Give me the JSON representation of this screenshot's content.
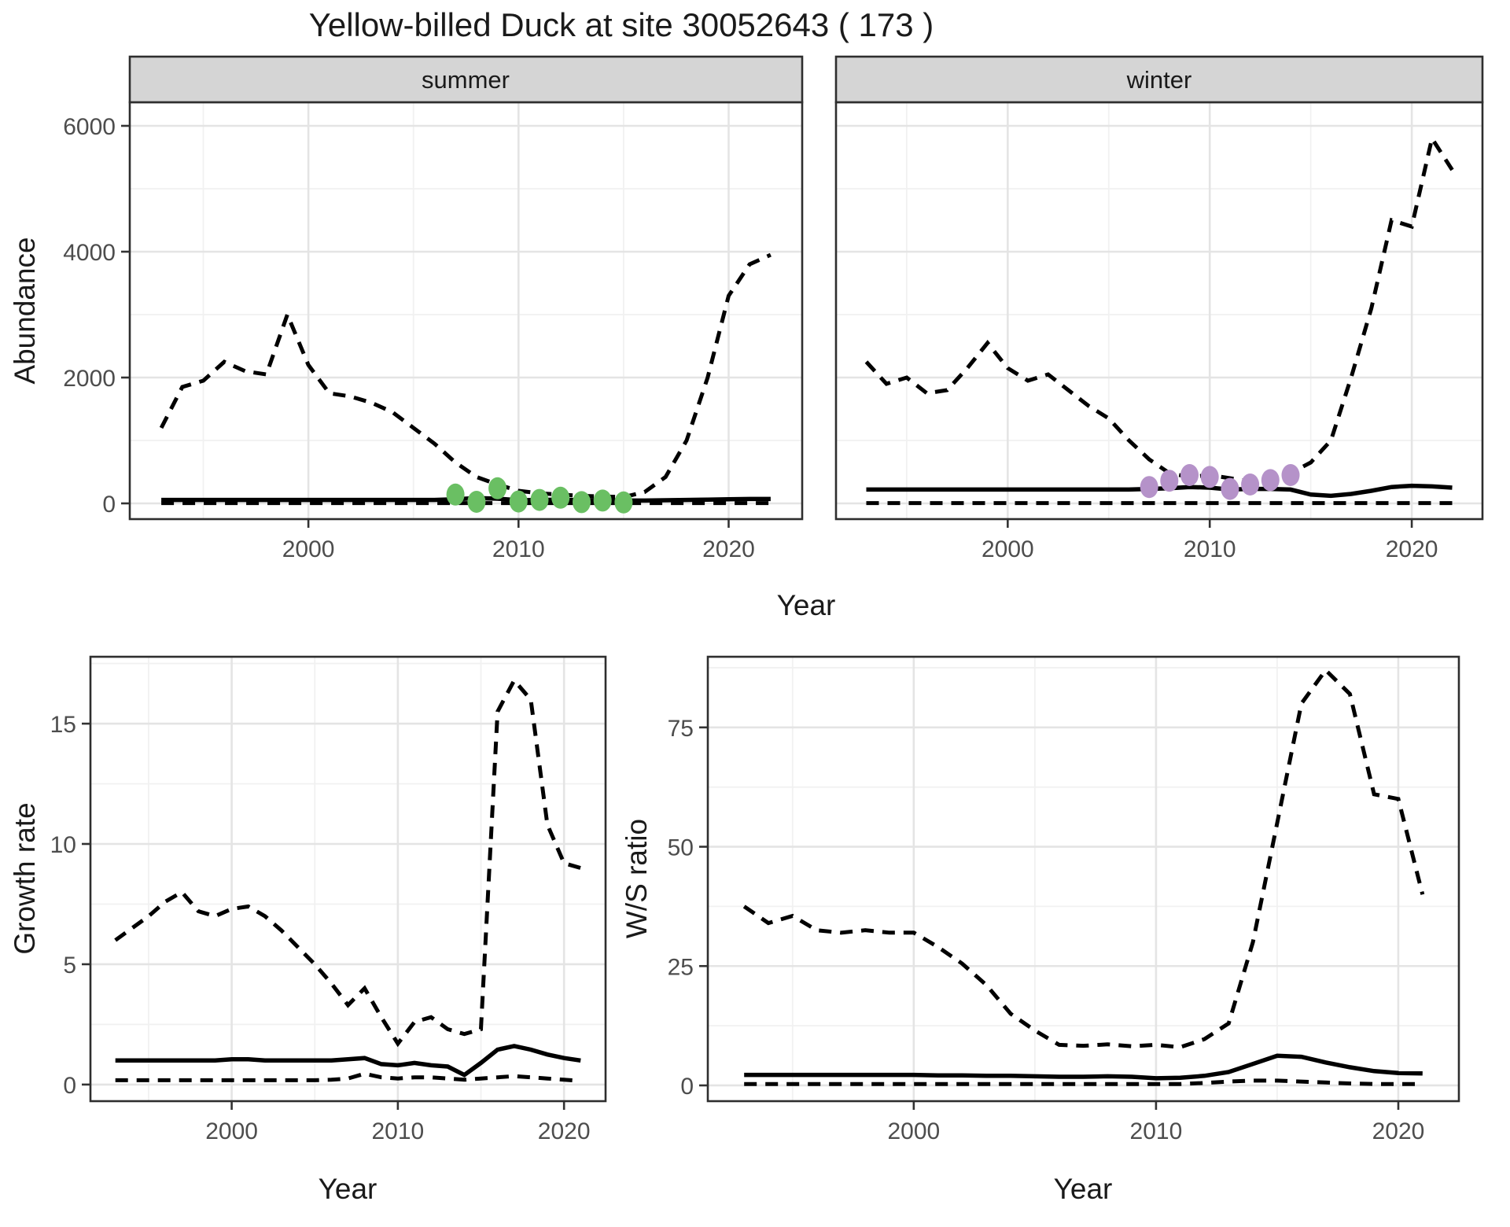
{
  "title": "Yellow-billed Duck at site 30052643 ( 173 )",
  "facets": {
    "summer": "summer",
    "winter": "winter"
  },
  "axis_labels": {
    "abundance": "Abundance",
    "year": "Year",
    "growth_rate": "Growth rate",
    "ws_ratio": "W/S ratio"
  },
  "colors": {
    "summer_points": "#6abf63",
    "winter_points": "#b592c9",
    "line": "#000000",
    "strip_fill": "#d5d5d5",
    "panel_border": "#2e2e2e",
    "grid_major": "#e4e4e4",
    "grid_minor": "#f1f1f1",
    "tick_mark": "#333333"
  },
  "chart_data": [
    {
      "id": "abundance-summer",
      "type": "line",
      "facet": "summer",
      "xlabel": "Year",
      "ylabel": "Abundance",
      "x": [
        1993,
        1994,
        1995,
        1996,
        1997,
        1998,
        1999,
        2000,
        2001,
        2002,
        2003,
        2004,
        2005,
        2006,
        2007,
        2008,
        2009,
        2010,
        2011,
        2012,
        2013,
        2014,
        2015,
        2016,
        2017,
        2018,
        2019,
        2020,
        2021,
        2022
      ],
      "series": [
        {
          "name": "upper_95ci",
          "style": "dashed",
          "values": [
            1200,
            1850,
            1950,
            2250,
            2100,
            2050,
            3000,
            2200,
            1750,
            1700,
            1600,
            1450,
            1200,
            950,
            650,
            420,
            300,
            200,
            160,
            140,
            120,
            110,
            100,
            180,
            420,
            1000,
            2000,
            3300,
            3800,
            3950
          ]
        },
        {
          "name": "fit",
          "style": "solid",
          "values": [
            55,
            55,
            55,
            55,
            55,
            55,
            55,
            55,
            55,
            55,
            55,
            55,
            55,
            55,
            65,
            85,
            75,
            50,
            55,
            60,
            50,
            50,
            45,
            45,
            50,
            55,
            60,
            65,
            70,
            70
          ]
        },
        {
          "name": "lower_95ci",
          "style": "dashed",
          "values": [
            5,
            5,
            5,
            5,
            5,
            5,
            5,
            5,
            5,
            5,
            5,
            5,
            5,
            5,
            5,
            5,
            5,
            5,
            5,
            5,
            5,
            5,
            5,
            5,
            5,
            5,
            5,
            5,
            5,
            5
          ]
        }
      ],
      "points": {
        "name": "observed_counts",
        "color_key": "summer_points",
        "x": [
          2007,
          2008,
          2009,
          2010,
          2011,
          2012,
          2013,
          2014,
          2015
        ],
        "y": [
          140,
          25,
          240,
          30,
          55,
          90,
          20,
          45,
          15
        ]
      },
      "xlim": [
        1991.5,
        2023.5
      ],
      "ylim": [
        0,
        6000
      ],
      "xticks": [
        2000,
        2010,
        2020
      ],
      "xticks_minor": [
        1995,
        2005,
        2015
      ],
      "yticks": [
        0,
        2000,
        4000,
        6000
      ],
      "yticks_minor": [
        1000,
        3000,
        5000
      ]
    },
    {
      "id": "abundance-winter",
      "type": "line",
      "facet": "winter",
      "xlabel": "Year",
      "ylabel": "Abundance",
      "x": [
        1993,
        1994,
        1995,
        1996,
        1997,
        1998,
        1999,
        2000,
        2001,
        2002,
        2003,
        2004,
        2005,
        2006,
        2007,
        2008,
        2009,
        2010,
        2011,
        2012,
        2013,
        2014,
        2015,
        2016,
        2017,
        2018,
        2019,
        2020,
        2021,
        2022
      ],
      "series": [
        {
          "name": "upper_95ci",
          "style": "dashed",
          "values": [
            2250,
            1900,
            2000,
            1750,
            1800,
            2150,
            2550,
            2150,
            1950,
            2050,
            1800,
            1550,
            1350,
            1000,
            700,
            480,
            420,
            450,
            400,
            350,
            400,
            480,
            650,
            1000,
            2000,
            3100,
            4500,
            4400,
            5800,
            5300
          ]
        },
        {
          "name": "fit",
          "style": "solid",
          "values": [
            220,
            220,
            220,
            220,
            220,
            220,
            220,
            220,
            220,
            220,
            220,
            220,
            220,
            220,
            230,
            240,
            260,
            250,
            220,
            230,
            230,
            220,
            140,
            120,
            150,
            200,
            260,
            280,
            270,
            250
          ]
        },
        {
          "name": "lower_95ci",
          "style": "dashed",
          "values": [
            5,
            5,
            5,
            5,
            5,
            5,
            5,
            5,
            5,
            5,
            5,
            5,
            5,
            5,
            5,
            5,
            5,
            5,
            5,
            5,
            5,
            5,
            5,
            5,
            5,
            5,
            5,
            5,
            5,
            5
          ]
        }
      ],
      "points": {
        "name": "observed_counts",
        "color_key": "winter_points",
        "x": [
          2007,
          2008,
          2009,
          2010,
          2011,
          2012,
          2013,
          2014
        ],
        "y": [
          260,
          360,
          450,
          420,
          230,
          300,
          370,
          450
        ]
      },
      "xlim": [
        1991.5,
        2023.5
      ],
      "ylim": [
        0,
        6000
      ],
      "xticks": [
        2000,
        2010,
        2020
      ],
      "xticks_minor": [
        1995,
        2005,
        2015
      ],
      "yticks": [
        0,
        2000,
        4000,
        6000
      ],
      "yticks_minor": [
        1000,
        3000,
        5000
      ]
    },
    {
      "id": "growth-rate",
      "type": "line",
      "facet": null,
      "xlabel": "Year",
      "ylabel": "Growth rate",
      "x": [
        1993,
        1994,
        1995,
        1996,
        1997,
        1998,
        1999,
        2000,
        2001,
        2002,
        2003,
        2004,
        2005,
        2006,
        2007,
        2008,
        2009,
        2010,
        2011,
        2012,
        2013,
        2014,
        2015,
        2016,
        2017,
        2018,
        2019,
        2020,
        2021
      ],
      "series": [
        {
          "name": "upper_95ci",
          "style": "dashed",
          "values": [
            6.0,
            6.5,
            7.0,
            7.6,
            8.0,
            7.2,
            7.0,
            7.3,
            7.4,
            7.0,
            6.4,
            5.7,
            5.0,
            4.2,
            3.3,
            4.0,
            2.8,
            1.7,
            2.6,
            2.8,
            2.3,
            2.1,
            2.3,
            15.5,
            16.8,
            16.0,
            10.8,
            9.2,
            9.0
          ]
        },
        {
          "name": "fit",
          "style": "solid",
          "values": [
            1.0,
            1.0,
            1.0,
            1.0,
            1.0,
            1.0,
            1.0,
            1.05,
            1.05,
            1.0,
            1.0,
            1.0,
            1.0,
            1.0,
            1.05,
            1.1,
            0.85,
            0.8,
            0.9,
            0.8,
            0.75,
            0.4,
            0.9,
            1.45,
            1.6,
            1.45,
            1.25,
            1.1,
            1.0
          ]
        },
        {
          "name": "lower_95ci",
          "style": "dashed",
          "values": [
            0.18,
            0.18,
            0.18,
            0.18,
            0.18,
            0.18,
            0.18,
            0.18,
            0.18,
            0.18,
            0.18,
            0.18,
            0.18,
            0.2,
            0.25,
            0.45,
            0.3,
            0.25,
            0.3,
            0.3,
            0.25,
            0.2,
            0.25,
            0.3,
            0.35,
            0.3,
            0.25,
            0.2,
            0.15
          ]
        }
      ],
      "points": null,
      "xlim": [
        1991.5,
        2022.5
      ],
      "ylim": [
        0,
        15
      ],
      "xticks": [
        2000,
        2010,
        2020
      ],
      "xticks_minor": [
        1995,
        2005,
        2015
      ],
      "yticks": [
        0,
        5,
        10,
        15
      ],
      "yticks_minor": [
        2.5,
        7.5,
        12.5,
        17.5
      ]
    },
    {
      "id": "ws-ratio",
      "type": "line",
      "facet": null,
      "xlabel": "Year",
      "ylabel": "W/S ratio",
      "x": [
        1993,
        1994,
        1995,
        1996,
        1997,
        1998,
        1999,
        2000,
        2001,
        2002,
        2003,
        2004,
        2005,
        2006,
        2007,
        2008,
        2009,
        2010,
        2011,
        2012,
        2013,
        2014,
        2015,
        2016,
        2017,
        2018,
        2019,
        2020,
        2021
      ],
      "series": [
        {
          "name": "upper_95ci",
          "style": "dashed",
          "values": [
            37.5,
            34,
            35.5,
            32.5,
            32,
            32.5,
            32,
            32,
            29,
            25.5,
            21,
            15,
            11.5,
            8.5,
            8.3,
            8.6,
            8.2,
            8.5,
            8.0,
            9.7,
            13,
            30,
            55,
            80,
            87,
            82,
            61,
            60,
            40
          ]
        },
        {
          "name": "fit",
          "style": "solid",
          "values": [
            2.2,
            2.2,
            2.2,
            2.2,
            2.2,
            2.2,
            2.2,
            2.2,
            2.1,
            2.1,
            2.0,
            2.0,
            1.9,
            1.8,
            1.8,
            1.9,
            1.8,
            1.5,
            1.6,
            2.0,
            2.8,
            4.5,
            6.2,
            6.0,
            4.8,
            3.8,
            3.0,
            2.6,
            2.5
          ]
        },
        {
          "name": "lower_95ci",
          "style": "dashed",
          "values": [
            0.3,
            0.3,
            0.3,
            0.3,
            0.3,
            0.3,
            0.3,
            0.3,
            0.3,
            0.3,
            0.3,
            0.3,
            0.3,
            0.3,
            0.3,
            0.3,
            0.3,
            0.3,
            0.3,
            0.5,
            0.8,
            1.0,
            1.0,
            0.8,
            0.6,
            0.4,
            0.3,
            0.3,
            0.3
          ]
        }
      ],
      "points": null,
      "xlim": [
        1991.5,
        2022.5
      ],
      "ylim": [
        0,
        75
      ],
      "xticks": [
        2000,
        2010,
        2020
      ],
      "xticks_minor": [
        1995,
        2005,
        2015
      ],
      "yticks": [
        0,
        25,
        50,
        75
      ],
      "yticks_minor": [
        12.5,
        37.5,
        62.5,
        87.5
      ]
    }
  ]
}
